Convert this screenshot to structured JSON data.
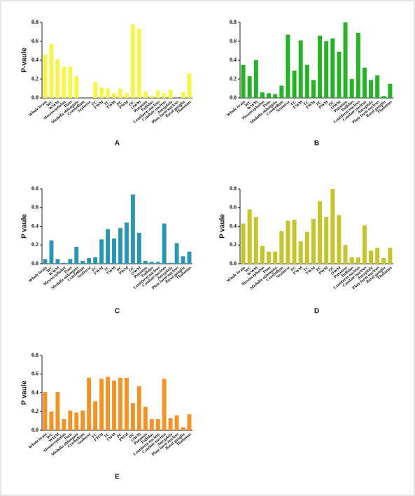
{
  "chart_data": [
    {
      "type": "bar",
      "label": "A",
      "ylabel": "P-vaule",
      "color": "#f7f54a",
      "categories": [
        "Whole brain",
        "WC",
        "WWM",
        "Mesencephalon",
        "Pons",
        "Medulla oblongata",
        "Cerebellum",
        "Seahorse",
        "FC",
        "FWM",
        "TC",
        "TWM",
        "PC",
        "PWM",
        "OC",
        "OWM",
        "Putamen",
        "Pallidus",
        "Lentiform nucleus",
        "Caudate nucleus",
        "Amygdala",
        "Plate form nucleus",
        "Basal ganglia",
        "Thalamus"
      ],
      "values": [
        0.46,
        0.57,
        0.41,
        0.33,
        0.33,
        0.23,
        0,
        0,
        0.17,
        0.11,
        0.1,
        0.05,
        0.1,
        0.05,
        0.78,
        0.73,
        0.07,
        0.02,
        0.08,
        0.05,
        0.09,
        0,
        0.06,
        0.26
      ],
      "ylim": [
        0,
        0.8
      ],
      "yticks": [
        {
          "value": 0,
          "label": "0.0"
        },
        0.2,
        0.4,
        0.6,
        0.8
      ]
    },
    {
      "type": "bar",
      "label": "B",
      "color": "#27b327",
      "categories": [
        "Whole brain",
        "WC",
        "WWM",
        "Mesencephalon",
        "Pons",
        "Medulla oblongata",
        "Cerebellum",
        "Seahorse",
        "FC",
        "FWM",
        "TC",
        "TWM",
        "PC",
        "PWM",
        "OC",
        "OWM",
        "Putamen",
        "Pallidus",
        "Lentiform nucleus",
        "Caudate nucleus",
        "Amygdala",
        "Plate form nucleus",
        "Basal ganglia",
        "Thalamus"
      ],
      "values": [
        0.35,
        0.23,
        0.4,
        0.06,
        0.05,
        0.04,
        0.13,
        0.67,
        0.29,
        0.61,
        0.35,
        0.19,
        0.66,
        0.6,
        0.63,
        0.49,
        0.8,
        0.2,
        0.69,
        0.32,
        0.19,
        0.24,
        0.02,
        0.15
      ],
      "ylim": [
        0,
        0.8
      ],
      "yticks": [
        {
          "value": 0,
          "label": "0.0"
        },
        0.2,
        0.4,
        0.6,
        0.8
      ]
    },
    {
      "type": "bar",
      "label": "C",
      "ylabel": "P vaule",
      "color": "#2a95b3",
      "categories": [
        "Whole brain",
        "WC",
        "WWM",
        "Mesencephalon",
        "Pons",
        "Medulla oblongata",
        "Cerebellum",
        "Seahorse",
        "FC",
        "FWM",
        "TC",
        "TWM",
        "PC",
        "PWM",
        "OC",
        "OWM",
        "Putamen",
        "Pallidus",
        "Lentiform nucleus",
        "Caudate nucleus",
        "Amygdala",
        "Plate form nucleus",
        "Basal ganglia",
        "Thalamus"
      ],
      "values": [
        0.05,
        0.25,
        0.05,
        0.01,
        0.05,
        0.18,
        0.03,
        0.06,
        0.07,
        0.26,
        0.37,
        0.27,
        0.38,
        0.44,
        0.74,
        0.33,
        0.03,
        0.02,
        0.02,
        0.43,
        0.01,
        0.22,
        0.08,
        0.13
      ],
      "ylim": [
        0,
        0.8
      ],
      "yticks": [
        {
          "value": 0,
          "label": "0.0"
        },
        0.2,
        0.4,
        0.6,
        0.8
      ]
    },
    {
      "type": "bar",
      "label": "D",
      "ylabel": "P vaule",
      "color": "#c6c52c",
      "categories": [
        "Whole brain",
        "WC",
        "WWM",
        "Mesencephalon",
        "Pons",
        "Medulla oblongata",
        "Cerebellum",
        "Seahorse",
        "FC",
        "FWM",
        "TC",
        "TWM",
        "PC",
        "PWM",
        "OC",
        "OWM",
        "Putamen",
        "Pallidus",
        "Lentiform nucleus",
        "Caudate nucleus",
        "Amygdala",
        "Plate form nucleus",
        "Basal ganglia",
        "Thalamus"
      ],
      "values": [
        0.43,
        0.58,
        0.5,
        0.19,
        0.13,
        0.13,
        0.35,
        0.46,
        0.47,
        0.24,
        0.34,
        0.48,
        0.67,
        0.5,
        0.8,
        0.52,
        0.2,
        0.07,
        0.07,
        0.41,
        0.14,
        0.17,
        0.06,
        0.17
      ],
      "ylim": [
        0,
        0.8
      ],
      "yticks": [
        {
          "value": 0,
          "label": "0.0"
        },
        0.2,
        0.4,
        0.6,
        0.8
      ]
    },
    {
      "type": "bar",
      "label": "E",
      "ylabel": "P vaule",
      "color": "#f39325",
      "categories": [
        "Whole brain",
        "WC",
        "WWM",
        "Mesencephalon",
        "Pons",
        "Medulla oblongata",
        "Cerebellum",
        "Seahorse",
        "FC",
        "FWM",
        "TC",
        "TWM",
        "PC",
        "PWM",
        "OC",
        "OWM",
        "Putamen",
        "Pallidus",
        "Lentiform nucleus",
        "Caudate nucleus",
        "Amygdala",
        "Plate form nucleus",
        "Basal ganglia",
        "Thalamus"
      ],
      "values": [
        0.41,
        0.2,
        0.41,
        0.12,
        0.21,
        0.19,
        0.21,
        0.56,
        0.31,
        0.55,
        0.57,
        0.53,
        0.56,
        0.56,
        0.29,
        0.47,
        0.25,
        0.12,
        0.12,
        0.55,
        0.13,
        0.16,
        0.03,
        0.17
      ],
      "ylim": [
        0,
        0.8
      ],
      "yticks": [
        {
          "value": 0,
          "label": "0.0"
        },
        0.2,
        0.4,
        0.6,
        0.8
      ]
    }
  ]
}
